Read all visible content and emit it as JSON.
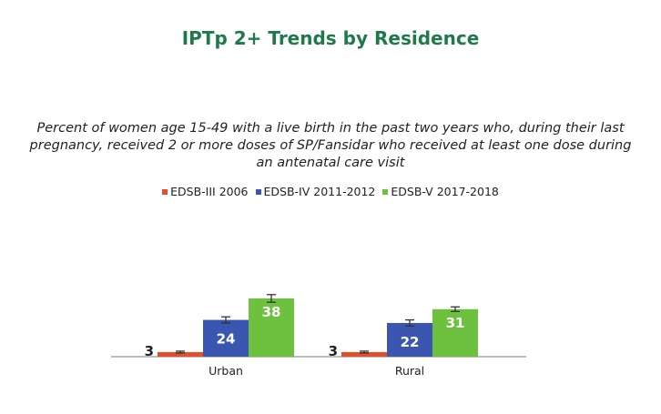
{
  "title": "IPTp 2+ Trends by Residence",
  "subtitle": "Percent of women age 15-49 with a live birth in the past two years who, during their last pregnancy, received 2 or more doses of SP/Fansidar who received at least one dose during an antenatal care visit",
  "colors": {
    "title": "#1f7a4a",
    "text": "#222222",
    "axis": "#aaaaaa",
    "errorbar": "#333333"
  },
  "chart_data": {
    "type": "bar",
    "categories": [
      "Urban",
      "Rural"
    ],
    "series": [
      {
        "name": "EDSB-III 2006",
        "color": "#e0502a",
        "values": [
          3,
          3
        ],
        "value_labels": [
          "3",
          "3"
        ],
        "error": [
          0.6,
          0.6
        ]
      },
      {
        "name": "EDSB-IV 2011-2012",
        "color": "#3a56b0",
        "values": [
          24,
          22
        ],
        "value_labels": [
          "24",
          "22"
        ],
        "error": [
          2.0,
          2.0
        ]
      },
      {
        "name": "EDSB-V 2017-2018",
        "color": "#6dc13f",
        "values": [
          38,
          31
        ],
        "value_labels": [
          "38",
          "31"
        ],
        "error": [
          2.5,
          1.5
        ]
      }
    ],
    "ylim": [
      0,
      45
    ],
    "grid": false,
    "legend_position": "top-center"
  }
}
